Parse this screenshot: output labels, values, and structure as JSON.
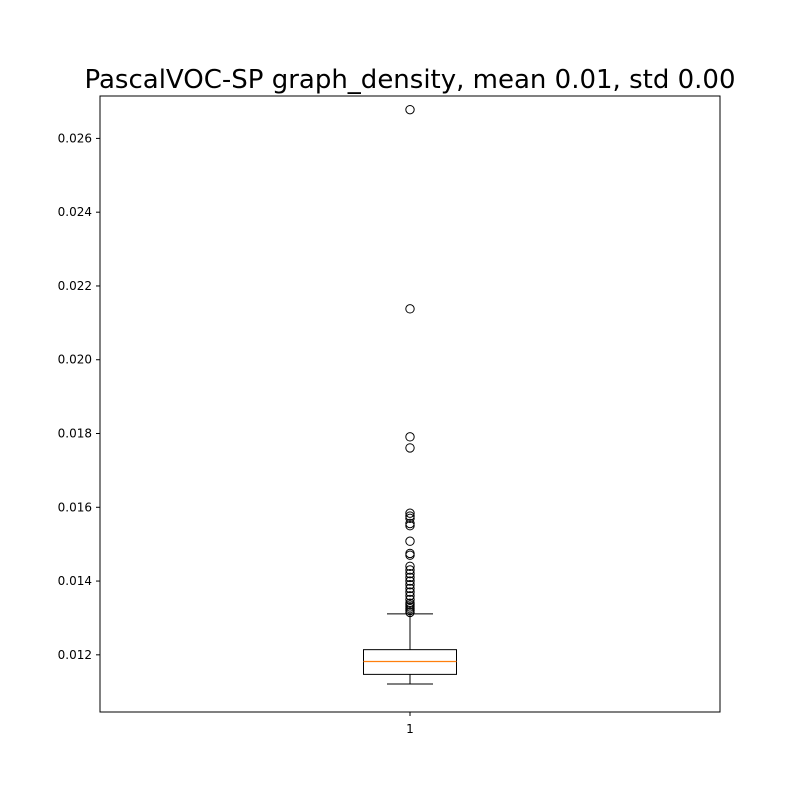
{
  "chart_data": {
    "type": "box",
    "title": "PascalVOC-SP graph_density, mean 0.01, std 0.00",
    "xlabel": "",
    "ylabel": "",
    "categories": [
      "1"
    ],
    "ylim": [
      0.01045,
      0.02715
    ],
    "yticks": [
      0.012,
      0.014,
      0.016,
      0.018,
      0.02,
      0.022,
      0.024,
      0.026
    ],
    "ytick_labels": [
      "0.012",
      "0.014",
      "0.016",
      "0.018",
      "0.020",
      "0.022",
      "0.024",
      "0.026"
    ],
    "grid": false,
    "boxes": [
      {
        "category": "1",
        "whisker_low": 0.01121,
        "q1": 0.01147,
        "median": 0.01182,
        "q3": 0.01214,
        "whisker_high": 0.01311,
        "outliers": [
          0.01315,
          0.0132,
          0.01325,
          0.0133,
          0.01335,
          0.0134,
          0.0135,
          0.0136,
          0.0137,
          0.0138,
          0.0139,
          0.014,
          0.0141,
          0.0142,
          0.0143,
          0.0144,
          0.0147,
          0.01475,
          0.01508,
          0.0155,
          0.01556,
          0.0157,
          0.01576,
          0.01584,
          0.01761,
          0.01791,
          0.02138,
          0.02678
        ]
      }
    ],
    "colors": {
      "box": "#000000",
      "median": "#ff7f0e",
      "outlier": "#000000"
    }
  }
}
